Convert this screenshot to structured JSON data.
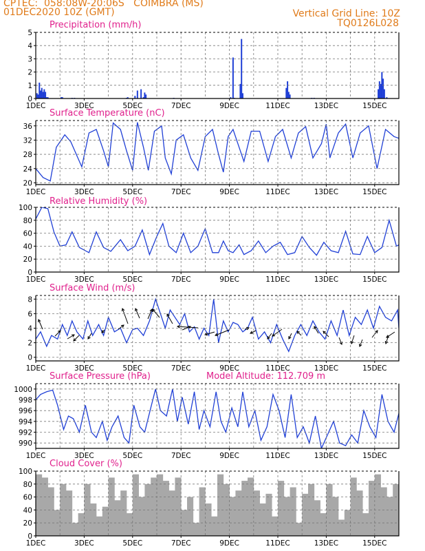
{
  "header": {
    "line1_left": "CPTEC:  058:08W-20:06S   COIMBRA (MS)",
    "line2_left": "01DEC2020 10Z (GMT)",
    "line2_right": "Vertical Grid Line: 10Z",
    "line3_right": "TQ0126L028",
    "colors": {
      "header": "#e07b1a",
      "title": "#e0208c",
      "series": "#1f3fd6",
      "cloud": "#a8a8a8"
    }
  },
  "chart_data": [
    {
      "type": "bar",
      "title": "Precipitation (mm/h)",
      "xticks": [
        "1DEC",
        "3DEC",
        "5DEC",
        "7DEC",
        "9DEC",
        "11DEC",
        "13DEC",
        "15DEC"
      ],
      "xlim": [
        0,
        15
      ],
      "ylim": [
        0,
        5
      ],
      "yticks": [
        0,
        1,
        2,
        3,
        4,
        5
      ],
      "grid": true,
      "x": [
        0.05,
        0.1,
        0.15,
        0.2,
        0.25,
        0.3,
        0.35,
        0.4,
        0.45,
        0.5,
        1.05,
        1.1,
        1.5,
        1.6,
        3.75,
        3.8,
        4.1,
        4.2,
        4.35,
        4.45,
        4.5,
        4.55,
        5.7,
        8.05,
        8.15,
        8.2,
        8.45,
        8.5,
        8.55,
        10.35,
        10.4,
        10.45,
        10.5,
        11.4,
        11.5,
        14.15,
        14.2,
        14.25,
        14.3,
        14.35,
        14.4,
        14.5
      ],
      "values": [
        0.4,
        0.3,
        1.2,
        0.6,
        0.8,
        0.5,
        0.7,
        0.5,
        0.1,
        0.1,
        0.1,
        0.1,
        0.05,
        0.05,
        0.05,
        0.1,
        0.2,
        0.6,
        0.7,
        0.1,
        0.45,
        0.3,
        0.05,
        0.1,
        3.1,
        0.05,
        1.1,
        4.5,
        0.4,
        0.8,
        1.3,
        0.5,
        0.3,
        0.05,
        0.05,
        0.7,
        1.3,
        1.1,
        2.0,
        1.5,
        0.7,
        0.1
      ]
    },
    {
      "type": "line",
      "title": "Surface Temperature (nC)",
      "xticks": [
        "1DEC",
        "3DEC",
        "5DEC",
        "7DEC",
        "9DEC",
        "11DEC",
        "13DEC",
        "15DEC"
      ],
      "xlim": [
        0,
        15
      ],
      "ylim": [
        19.5,
        37.5
      ],
      "yticks": [
        20,
        24,
        28,
        32,
        36
      ],
      "grid": true,
      "x": [
        0,
        0.3,
        0.6,
        0.85,
        1.2,
        1.45,
        1.9,
        2.2,
        2.5,
        2.8,
        3.0,
        3.2,
        3.5,
        3.75,
        4.0,
        4.2,
        4.45,
        4.65,
        4.9,
        5.2,
        5.35,
        5.6,
        5.8,
        6.1,
        6.4,
        6.7,
        7.0,
        7.3,
        7.55,
        7.75,
        7.95,
        8.15,
        8.35,
        8.6,
        8.9,
        9.25,
        9.6,
        9.9,
        10.2,
        10.55,
        10.85,
        11.15,
        11.45,
        11.8,
        12.0,
        12.15,
        12.5,
        12.8,
        13.1,
        13.4,
        13.75,
        14.1,
        14.45,
        14.8,
        15.0
      ],
      "values": [
        24,
        21.5,
        20.5,
        30,
        33.5,
        31.5,
        24.5,
        34,
        35,
        29,
        24.5,
        36.8,
        35,
        29,
        23.5,
        37,
        30,
        23.5,
        34.5,
        36,
        27,
        22.5,
        32,
        33.5,
        27,
        23.5,
        33,
        35,
        28,
        23,
        33,
        35,
        31,
        26,
        34.5,
        34.5,
        26,
        33,
        35,
        27,
        34,
        35.8,
        27,
        31,
        36.5,
        27,
        34,
        36.5,
        27,
        34,
        36,
        24,
        35,
        33,
        32.5
      ]
    },
    {
      "type": "line",
      "title": "Relative Humidity (%)",
      "xticks": [
        "1DEC",
        "3DEC",
        "5DEC",
        "7DEC",
        "9DEC",
        "11DEC",
        "13DEC",
        "15DEC"
      ],
      "xlim": [
        0,
        15
      ],
      "ylim": [
        0,
        100
      ],
      "yticks": [
        0,
        20,
        40,
        60,
        80,
        100
      ],
      "grid": true,
      "x": [
        0,
        0.25,
        0.5,
        0.75,
        1.0,
        1.25,
        1.5,
        1.8,
        2.2,
        2.5,
        2.8,
        3.1,
        3.5,
        3.8,
        4.1,
        4.4,
        4.7,
        5.0,
        5.25,
        5.5,
        5.8,
        6.1,
        6.4,
        6.7,
        7.0,
        7.3,
        7.55,
        7.75,
        7.95,
        8.15,
        8.4,
        8.6,
        8.9,
        9.2,
        9.5,
        9.8,
        10.1,
        10.4,
        10.7,
        11.0,
        11.3,
        11.6,
        11.9,
        12.2,
        12.5,
        12.8,
        13.1,
        13.4,
        13.7,
        14.0,
        14.3,
        14.6,
        14.9,
        15.0
      ],
      "values": [
        82,
        100,
        98,
        62,
        40,
        42,
        62,
        38,
        30,
        62,
        38,
        32,
        50,
        33,
        40,
        65,
        27,
        55,
        75,
        40,
        30,
        60,
        30,
        40,
        67,
        30,
        30,
        48,
        33,
        30,
        42,
        27,
        33,
        48,
        30,
        40,
        46,
        27,
        30,
        55,
        38,
        26,
        46,
        33,
        30,
        63,
        28,
        27,
        55,
        30,
        38,
        80,
        40,
        42
      ]
    },
    {
      "type": "line",
      "title": "Surface Wind (m/s)",
      "xticks": [
        "1DEC",
        "3DEC",
        "5DEC",
        "7DEC",
        "9DEC",
        "11DEC",
        "13DEC",
        "15DEC"
      ],
      "xlim": [
        0,
        15
      ],
      "ylim": [
        -0.5,
        8.5
      ],
      "yticks": [
        0,
        2,
        4,
        6,
        8
      ],
      "grid": true,
      "x": [
        0,
        0.2,
        0.45,
        0.65,
        0.9,
        1.1,
        1.3,
        1.5,
        1.7,
        1.95,
        2.15,
        2.35,
        2.6,
        2.8,
        3.0,
        3.25,
        3.5,
        3.75,
        4.0,
        4.2,
        4.45,
        4.7,
        4.95,
        5.15,
        5.35,
        5.55,
        5.75,
        5.95,
        6.15,
        6.35,
        6.55,
        6.75,
        6.95,
        7.15,
        7.35,
        7.55,
        7.75,
        7.95,
        8.15,
        8.35,
        8.55,
        8.75,
        8.95,
        9.2,
        9.45,
        9.7,
        9.95,
        10.2,
        10.45,
        10.7,
        10.95,
        11.2,
        11.45,
        11.7,
        11.95,
        12.2,
        12.45,
        12.7,
        12.95,
        13.2,
        13.45,
        13.7,
        13.95,
        14.2,
        14.45,
        14.7,
        14.95,
        15.0
      ],
      "values": [
        2.5,
        3.5,
        1.5,
        3,
        2.5,
        4.5,
        3,
        5,
        3.5,
        2.5,
        5,
        3,
        4.5,
        3,
        5.5,
        3.5,
        4,
        2,
        3.8,
        4,
        3,
        5,
        8,
        6,
        4,
        6.5,
        5.5,
        4.5,
        6,
        3.5,
        4.2,
        2.5,
        4,
        3,
        8,
        2,
        5,
        3.5,
        4.8,
        4.5,
        3.5,
        4,
        5.5,
        2.5,
        3.5,
        2,
        4.5,
        2.5,
        0.8,
        3,
        4.5,
        3,
        5,
        3.5,
        2.5,
        5,
        3,
        6.5,
        3,
        5.5,
        4.5,
        6.5,
        4,
        7,
        5.5,
        5,
        6.5,
        4
      ]
    },
    {
      "type": "line",
      "title": "Surface Pressure (hPa)",
      "annotation": "Model Altitude: 112.709 m",
      "xticks": [
        "1DEC",
        "3DEC",
        "5DEC",
        "7DEC",
        "9DEC",
        "11DEC",
        "13DEC",
        "15DEC"
      ],
      "xlim": [
        0,
        15
      ],
      "ylim": [
        989,
        1001
      ],
      "yticks": [
        990,
        992,
        994,
        996,
        998,
        1000
      ],
      "grid": true,
      "x": [
        0,
        0.2,
        0.45,
        0.7,
        0.9,
        1.15,
        1.35,
        1.55,
        1.8,
        2.05,
        2.3,
        2.5,
        2.75,
        2.95,
        3.15,
        3.4,
        3.65,
        3.85,
        4.05,
        4.3,
        4.5,
        4.75,
        4.95,
        5.15,
        5.4,
        5.65,
        5.85,
        6.05,
        6.3,
        6.55,
        6.75,
        6.95,
        7.2,
        7.45,
        7.65,
        7.85,
        8.1,
        8.35,
        8.55,
        8.8,
        9.05,
        9.3,
        9.55,
        9.8,
        10.05,
        10.3,
        10.55,
        10.8,
        11.05,
        11.3,
        11.55,
        11.8,
        12.05,
        12.3,
        12.55,
        12.8,
        13.05,
        13.3,
        13.55,
        13.8,
        14.05,
        14.3,
        14.55,
        14.8,
        15.0
      ],
      "values": [
        998,
        999,
        999.5,
        999.8,
        997,
        992.5,
        995,
        994.5,
        992,
        997,
        992,
        991,
        994,
        990.5,
        993,
        995,
        991,
        990,
        997,
        993,
        992,
        996.5,
        1000,
        996,
        995,
        1000,
        994,
        998.5,
        993.5,
        999.5,
        992.5,
        996,
        993,
        999.5,
        994,
        992,
        996.5,
        993,
        999.5,
        993,
        996,
        990.5,
        993,
        999,
        996,
        991,
        999,
        991,
        993,
        990,
        995,
        989,
        991.5,
        994,
        990,
        989.5,
        991.5,
        990,
        996,
        993,
        991,
        999,
        994,
        992,
        995.5
      ]
    },
    {
      "type": "bar",
      "title": "Cloud Cover (%)",
      "xticks": [
        "1DEC",
        "3DEC",
        "5DEC",
        "7DEC",
        "9DEC",
        "11DEC",
        "13DEC",
        "15DEC"
      ],
      "xlim": [
        0,
        15
      ],
      "ylim": [
        0,
        100
      ],
      "yticks": [
        0,
        20,
        40,
        60,
        80,
        100
      ],
      "grid": true,
      "x": [
        0,
        0.25,
        0.5,
        0.75,
        1.0,
        1.25,
        1.5,
        1.75,
        2.0,
        2.25,
        2.5,
        2.75,
        3.0,
        3.25,
        3.5,
        3.75,
        4.0,
        4.25,
        4.5,
        4.75,
        5.0,
        5.25,
        5.5,
        5.75,
        6.0,
        6.25,
        6.5,
        6.75,
        7.0,
        7.25,
        7.5,
        7.75,
        8.0,
        8.25,
        8.5,
        8.75,
        9.0,
        9.25,
        9.5,
        9.75,
        10.0,
        10.25,
        10.5,
        10.75,
        11.0,
        11.25,
        11.5,
        11.75,
        12.0,
        12.25,
        12.5,
        12.75,
        13.0,
        13.25,
        13.5,
        13.75,
        14.0,
        14.25,
        14.5,
        14.75,
        15.0
      ],
      "values": [
        95,
        90,
        75,
        40,
        80,
        70,
        20,
        35,
        80,
        50,
        30,
        45,
        90,
        55,
        70,
        35,
        95,
        60,
        80,
        90,
        95,
        85,
        70,
        90,
        40,
        60,
        20,
        75,
        50,
        30,
        95,
        80,
        60,
        70,
        85,
        90,
        70,
        50,
        65,
        30,
        85,
        60,
        75,
        20,
        65,
        80,
        55,
        35,
        80,
        60,
        25,
        40,
        90,
        70,
        35,
        85,
        95,
        75,
        60,
        80,
        85
      ]
    }
  ]
}
